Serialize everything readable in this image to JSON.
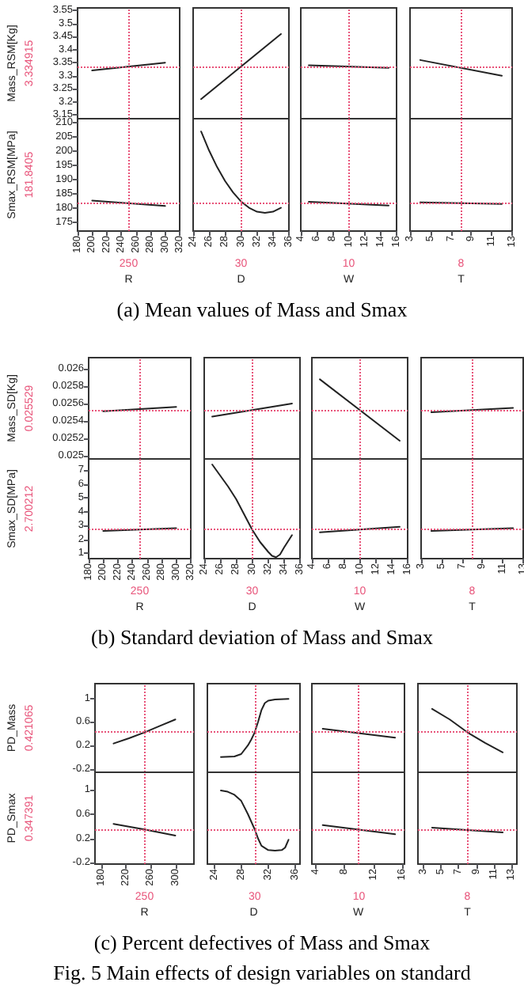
{
  "chart_data": [
    {
      "type": "line",
      "x": [
        200,
        300
      ],
      "values": [
        3.32,
        3.35
      ],
      "color": "#222222",
      "xlim": [
        180,
        320
      ],
      "ylim": [
        3.135,
        3.56
      ],
      "yticks": [
        3.15,
        3.2,
        3.25,
        3.3,
        3.35,
        3.4,
        3.45,
        3.5,
        3.55
      ],
      "tick_labels": "y",
      "ylabel": "Mass_RSM[Kg]",
      "ref_lines": [
        {
          "axis": "x",
          "value": 250,
          "color": "#e8547a",
          "line_style": "dotted"
        },
        {
          "axis": "y",
          "value": 3.334915,
          "label": "3.334915",
          "color": "#e8547a",
          "line_style": "dotted"
        }
      ]
    },
    {
      "type": "line",
      "x": [
        25,
        35
      ],
      "values": [
        3.21,
        3.46
      ],
      "color": "#222222",
      "xlim": [
        24,
        36
      ],
      "ylim": [
        3.135,
        3.56
      ],
      "tick_labels": false,
      "ref_lines": [
        {
          "axis": "x",
          "value": 30,
          "color": "#e8547a",
          "line_style": "dotted"
        },
        {
          "axis": "y",
          "value": 3.334915,
          "color": "#e8547a",
          "line_style": "dotted"
        }
      ]
    },
    {
      "type": "line",
      "x": [
        5,
        15
      ],
      "values": [
        3.34,
        3.33
      ],
      "color": "#222222",
      "xlim": [
        4,
        16
      ],
      "ylim": [
        3.135,
        3.56
      ],
      "tick_labels": false,
      "ref_lines": [
        {
          "axis": "x",
          "value": 10,
          "color": "#e8547a",
          "line_style": "dotted"
        },
        {
          "axis": "y",
          "value": 3.334915,
          "color": "#e8547a",
          "line_style": "dotted"
        }
      ]
    },
    {
      "type": "line",
      "x": [
        4,
        12
      ],
      "values": [
        3.36,
        3.3
      ],
      "color": "#222222",
      "xlim": [
        3,
        13
      ],
      "ylim": [
        3.135,
        3.56
      ],
      "tick_labels": false,
      "ref_lines": [
        {
          "axis": "x",
          "value": 8,
          "color": "#e8547a",
          "line_style": "dotted"
        },
        {
          "axis": "y",
          "value": 3.334915,
          "color": "#e8547a",
          "line_style": "dotted"
        }
      ]
    },
    {
      "type": "line",
      "x": [
        200,
        300
      ],
      "values": [
        182.7,
        180.8
      ],
      "color": "#222222",
      "xlim": [
        180,
        320
      ],
      "xticks": [
        180,
        200,
        220,
        240,
        260,
        280,
        300,
        320
      ],
      "ylim": [
        172,
        211.5
      ],
      "yticks": [
        175,
        180,
        185,
        190,
        195,
        200,
        205,
        210
      ],
      "xlabel": "R",
      "ylabel": "Smax_RSM[MPa]",
      "annotations": [
        "(a) Mean values of Mass and Smax"
      ],
      "ref_lines": [
        {
          "axis": "x",
          "value": 250,
          "label": "250",
          "color": "#e8547a",
          "line_style": "dotted"
        },
        {
          "axis": "y",
          "value": 181.8405,
          "label": "181.8405",
          "color": "#e8547a",
          "line_style": "dotted"
        }
      ]
    },
    {
      "type": "line",
      "x": [
        25,
        26,
        27,
        28,
        29,
        30,
        31,
        32,
        33,
        34,
        35
      ],
      "values": [
        207,
        200.3,
        194.5,
        189.6,
        185.6,
        182.4,
        180.2,
        178.8,
        178.4,
        178.8,
        180.2
      ],
      "color": "#222222",
      "xlim": [
        24,
        36
      ],
      "xticks": [
        24,
        26,
        28,
        30,
        32,
        34,
        36
      ],
      "ylim": [
        172,
        211.5
      ],
      "tick_labels": "x",
      "xlabel": "D",
      "ref_lines": [
        {
          "axis": "x",
          "value": 30,
          "label": "30",
          "color": "#e8547a",
          "line_style": "dotted"
        },
        {
          "axis": "y",
          "value": 181.8405,
          "color": "#e8547a",
          "line_style": "dotted"
        }
      ]
    },
    {
      "type": "line",
      "x": [
        5,
        15
      ],
      "values": [
        182.3,
        181
      ],
      "color": "#222222",
      "xlim": [
        4,
        16
      ],
      "xticks": [
        4,
        6,
        8,
        10,
        12,
        14,
        16
      ],
      "ylim": [
        172,
        211.5
      ],
      "tick_labels": "x",
      "xlabel": "W",
      "ref_lines": [
        {
          "axis": "x",
          "value": 10,
          "label": "10",
          "color": "#e8547a",
          "line_style": "dotted"
        },
        {
          "axis": "y",
          "value": 181.8405,
          "color": "#e8547a",
          "line_style": "dotted"
        }
      ]
    },
    {
      "type": "line",
      "x": [
        4,
        12
      ],
      "values": [
        182.1,
        181.5
      ],
      "color": "#222222",
      "xlim": [
        3,
        13
      ],
      "xticks": [
        3,
        5,
        7,
        9,
        11,
        13
      ],
      "ylim": [
        172,
        211.5
      ],
      "tick_labels": "x",
      "xlabel": "T",
      "ref_lines": [
        {
          "axis": "x",
          "value": 8,
          "label": "8",
          "color": "#e8547a",
          "line_style": "dotted"
        },
        {
          "axis": "y",
          "value": 181.8405,
          "color": "#e8547a",
          "line_style": "dotted"
        }
      ]
    },
    {
      "type": "line",
      "x": [
        200,
        300
      ],
      "values": [
        0.02551,
        0.02556
      ],
      "color": "#222222",
      "xlim": [
        180,
        320
      ],
      "ylim": [
        0.02496,
        0.02613
      ],
      "yticks": [
        0.025,
        0.0252,
        0.0254,
        0.0256,
        0.0258,
        0.026
      ],
      "tick_labels": "y",
      "ylabel": "Mass_SD[Kg]",
      "ref_lines": [
        {
          "axis": "x",
          "value": 250,
          "color": "#e8547a",
          "line_style": "dotted"
        },
        {
          "axis": "y",
          "value": 0.025529,
          "label": "0.025529",
          "color": "#e8547a",
          "line_style": "dotted"
        }
      ]
    },
    {
      "type": "line",
      "x": [
        25,
        35
      ],
      "values": [
        0.02545,
        0.0256
      ],
      "color": "#222222",
      "xlim": [
        24,
        36
      ],
      "ylim": [
        0.02496,
        0.02613
      ],
      "tick_labels": false,
      "ref_lines": [
        {
          "axis": "x",
          "value": 30,
          "color": "#e8547a",
          "line_style": "dotted"
        },
        {
          "axis": "y",
          "value": 0.025529,
          "color": "#e8547a",
          "line_style": "dotted"
        }
      ]
    },
    {
      "type": "line",
      "x": [
        5,
        15
      ],
      "values": [
        0.02588,
        0.02517
      ],
      "color": "#222222",
      "xlim": [
        4,
        16
      ],
      "ylim": [
        0.02496,
        0.02613
      ],
      "tick_labels": false,
      "ref_lines": [
        {
          "axis": "x",
          "value": 10,
          "color": "#e8547a",
          "line_style": "dotted"
        },
        {
          "axis": "y",
          "value": 0.025529,
          "color": "#e8547a",
          "line_style": "dotted"
        }
      ]
    },
    {
      "type": "line",
      "x": [
        4,
        12
      ],
      "values": [
        0.0255,
        0.02555
      ],
      "color": "#222222",
      "xlim": [
        3,
        13
      ],
      "ylim": [
        0.02496,
        0.02613
      ],
      "tick_labels": false,
      "ref_lines": [
        {
          "axis": "x",
          "value": 8,
          "color": "#e8547a",
          "line_style": "dotted"
        },
        {
          "axis": "y",
          "value": 0.025529,
          "color": "#e8547a",
          "line_style": "dotted"
        }
      ]
    },
    {
      "type": "line",
      "x": [
        200,
        300
      ],
      "values": [
        2.6,
        2.8
      ],
      "color": "#222222",
      "xlim": [
        180,
        320
      ],
      "xticks": [
        180,
        200,
        220,
        240,
        260,
        280,
        300,
        320
      ],
      "ylim": [
        0.6,
        7.8
      ],
      "yticks": [
        1,
        2,
        3,
        4,
        5,
        6,
        7
      ],
      "xlabel": "R",
      "ylabel": "Smax_SD[MPa]",
      "annotations": [
        "(b) Standard deviation of Mass and Smax"
      ],
      "ref_lines": [
        {
          "axis": "x",
          "value": 250,
          "label": "250",
          "color": "#e8547a",
          "line_style": "dotted"
        },
        {
          "axis": "y",
          "value": 2.700212,
          "label": "2.700212",
          "color": "#e8547a",
          "line_style": "dotted"
        }
      ]
    },
    {
      "type": "line",
      "x": [
        25,
        26,
        27,
        28,
        29,
        30,
        31,
        32,
        32.5,
        33,
        33.5,
        34,
        35
      ],
      "values": [
        7.4,
        6.6,
        5.8,
        4.9,
        3.8,
        2.7,
        1.8,
        1.1,
        0.8,
        0.7,
        0.9,
        1.4,
        2.3
      ],
      "color": "#222222",
      "xlim": [
        24,
        36
      ],
      "xticks": [
        24,
        26,
        28,
        30,
        32,
        34,
        36
      ],
      "ylim": [
        0.6,
        7.8
      ],
      "tick_labels": "x",
      "xlabel": "D",
      "ref_lines": [
        {
          "axis": "x",
          "value": 30,
          "label": "30",
          "color": "#e8547a",
          "line_style": "dotted"
        },
        {
          "axis": "y",
          "value": 2.700212,
          "color": "#e8547a",
          "line_style": "dotted"
        }
      ]
    },
    {
      "type": "line",
      "x": [
        5,
        15
      ],
      "values": [
        2.5,
        2.9
      ],
      "color": "#222222",
      "xlim": [
        4,
        16
      ],
      "xticks": [
        4,
        6,
        8,
        10,
        12,
        14,
        16
      ],
      "ylim": [
        0.6,
        7.8
      ],
      "tick_labels": "x",
      "xlabel": "W",
      "ref_lines": [
        {
          "axis": "x",
          "value": 10,
          "label": "10",
          "color": "#e8547a",
          "line_style": "dotted"
        },
        {
          "axis": "y",
          "value": 2.700212,
          "color": "#e8547a",
          "line_style": "dotted"
        }
      ]
    },
    {
      "type": "line",
      "x": [
        4,
        12
      ],
      "values": [
        2.6,
        2.8
      ],
      "color": "#222222",
      "xlim": [
        3,
        13
      ],
      "xticks": [
        3,
        5,
        7,
        9,
        11,
        13
      ],
      "ylim": [
        0.6,
        7.8
      ],
      "tick_labels": "x",
      "xlabel": "T",
      "ref_lines": [
        {
          "axis": "x",
          "value": 8,
          "label": "8",
          "color": "#e8547a",
          "line_style": "dotted"
        },
        {
          "axis": "y",
          "value": 2.700212,
          "color": "#e8547a",
          "line_style": "dotted"
        }
      ]
    },
    {
      "type": "line",
      "x": [
        200,
        225,
        250,
        275,
        300
      ],
      "values": [
        0.23,
        0.32,
        0.42,
        0.53,
        0.64
      ],
      "color": "#222222",
      "xlim": [
        170,
        330
      ],
      "ylim": [
        -0.26,
        1.25
      ],
      "yticks": [
        -0.2,
        0.2,
        0.6,
        1
      ],
      "tick_labels": "y",
      "ylabel": "PD_Mass",
      "ref_lines": [
        {
          "axis": "x",
          "value": 250,
          "color": "#e8547a",
          "line_style": "dotted"
        },
        {
          "axis": "y",
          "value": 0.421065,
          "label": "0.421065",
          "color": "#e8547a",
          "line_style": "dotted"
        }
      ]
    },
    {
      "type": "line",
      "x": [
        25,
        27,
        28,
        29,
        29.5,
        30,
        30.5,
        31,
        31.5,
        32,
        33,
        35
      ],
      "values": [
        0,
        0.01,
        0.05,
        0.2,
        0.3,
        0.42,
        0.6,
        0.8,
        0.92,
        0.96,
        0.98,
        0.99
      ],
      "color": "#222222",
      "xlim": [
        23,
        36.7
      ],
      "ylim": [
        -0.26,
        1.25
      ],
      "tick_labels": false,
      "ref_lines": [
        {
          "axis": "x",
          "value": 30,
          "color": "#e8547a",
          "line_style": "dotted"
        },
        {
          "axis": "y",
          "value": 0.421065,
          "color": "#e8547a",
          "line_style": "dotted"
        }
      ]
    },
    {
      "type": "line",
      "x": [
        5,
        15
      ],
      "values": [
        0.48,
        0.33
      ],
      "color": "#222222",
      "xlim": [
        3.5,
        16.3
      ],
      "ylim": [
        -0.26,
        1.25
      ],
      "tick_labels": false,
      "ref_lines": [
        {
          "axis": "x",
          "value": 10,
          "color": "#e8547a",
          "line_style": "dotted"
        },
        {
          "axis": "y",
          "value": 0.421065,
          "color": "#e8547a",
          "line_style": "dotted"
        }
      ]
    },
    {
      "type": "line",
      "x": [
        4,
        6,
        8,
        10,
        12
      ],
      "values": [
        0.82,
        0.64,
        0.42,
        0.24,
        0.08
      ],
      "color": "#222222",
      "xlim": [
        2.4,
        13.6
      ],
      "ylim": [
        -0.26,
        1.25
      ],
      "tick_labels": false,
      "ref_lines": [
        {
          "axis": "x",
          "value": 8,
          "color": "#e8547a",
          "line_style": "dotted"
        },
        {
          "axis": "y",
          "value": 0.421065,
          "color": "#e8547a",
          "line_style": "dotted"
        }
      ]
    },
    {
      "type": "line",
      "x": [
        200,
        250,
        300
      ],
      "values": [
        0.44,
        0.35,
        0.25
      ],
      "color": "#222222",
      "xlim": [
        170,
        330
      ],
      "xticks": [
        180,
        220,
        260,
        300
      ],
      "ylim": [
        -0.22,
        1.29
      ],
      "yticks": [
        -0.2,
        0.2,
        0.6,
        1
      ],
      "xlabel": "R",
      "ylabel": "PD_Smax",
      "annotations": [
        "(c) Percent defectives of Mass and Smax",
        "Fig. 5 Main effects of design variables on standard"
      ],
      "ref_lines": [
        {
          "axis": "x",
          "value": 250,
          "label": "250",
          "color": "#e8547a",
          "line_style": "dotted"
        },
        {
          "axis": "y",
          "value": 0.347391,
          "label": "0.347391",
          "color": "#e8547a",
          "line_style": "dotted"
        }
      ]
    },
    {
      "type": "line",
      "x": [
        25,
        26,
        27,
        28,
        29,
        30,
        30.5,
        31,
        32,
        33,
        34,
        34.5,
        35
      ],
      "values": [
        0.99,
        0.97,
        0.92,
        0.82,
        0.6,
        0.35,
        0.2,
        0.08,
        0.01,
        0,
        0.01,
        0.05,
        0.18
      ],
      "color": "#222222",
      "xlim": [
        23,
        36.7
      ],
      "xticks": [
        24,
        28,
        32,
        36
      ],
      "ylim": [
        -0.22,
        1.29
      ],
      "tick_labels": "x",
      "xlabel": "D",
      "ref_lines": [
        {
          "axis": "x",
          "value": 30,
          "label": "30",
          "color": "#e8547a",
          "line_style": "dotted"
        },
        {
          "axis": "y",
          "value": 0.347391,
          "color": "#e8547a",
          "line_style": "dotted"
        }
      ]
    },
    {
      "type": "line",
      "x": [
        5,
        15
      ],
      "values": [
        0.42,
        0.27
      ],
      "color": "#222222",
      "xlim": [
        3.5,
        16.3
      ],
      "xticks": [
        4,
        8,
        12,
        16
      ],
      "ylim": [
        -0.22,
        1.29
      ],
      "tick_labels": "x",
      "xlabel": "W",
      "ref_lines": [
        {
          "axis": "x",
          "value": 10,
          "label": "10",
          "color": "#e8547a",
          "line_style": "dotted"
        },
        {
          "axis": "y",
          "value": 0.347391,
          "color": "#e8547a",
          "line_style": "dotted"
        }
      ]
    },
    {
      "type": "line",
      "x": [
        4,
        12
      ],
      "values": [
        0.38,
        0.3
      ],
      "color": "#222222",
      "xlim": [
        2.4,
        13.6
      ],
      "xticks": [
        3,
        5,
        7,
        9,
        11,
        13
      ],
      "ylim": [
        -0.22,
        1.29
      ],
      "tick_labels": "x",
      "xlabel": "T",
      "ref_lines": [
        {
          "axis": "x",
          "value": 8,
          "label": "8",
          "color": "#e8547a",
          "line_style": "dotted"
        },
        {
          "axis": "y",
          "value": 0.347391,
          "color": "#e8547a",
          "line_style": "dotted"
        }
      ]
    }
  ]
}
